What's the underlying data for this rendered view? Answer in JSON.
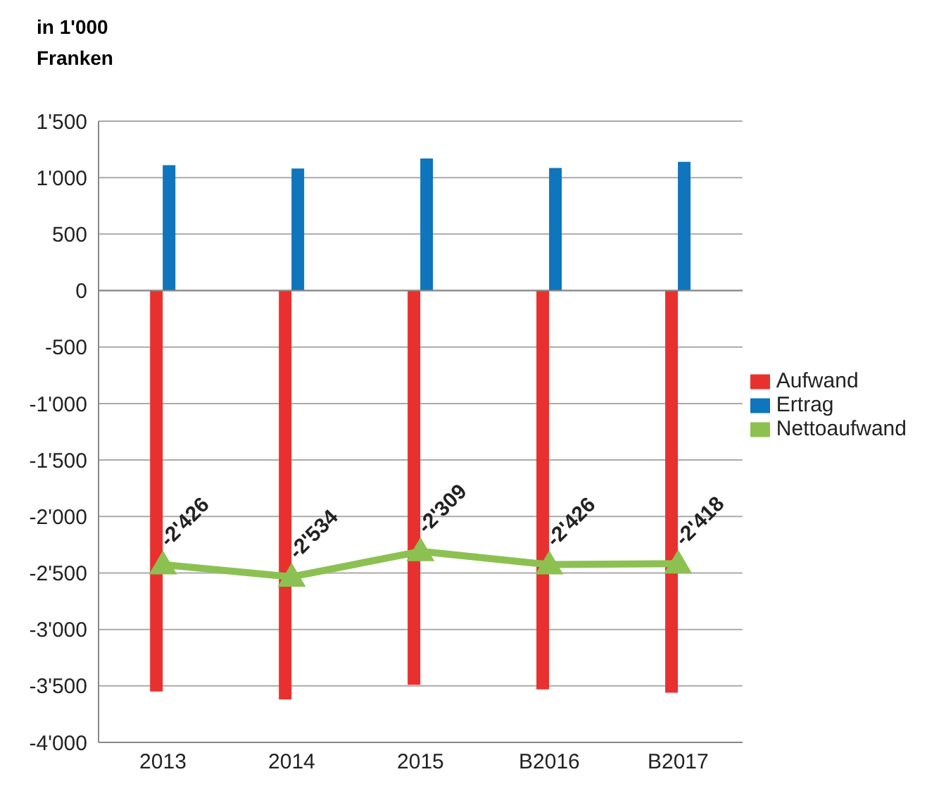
{
  "chart_data": {
    "type": "bar",
    "ylabel": "in 1'000 Franken",
    "categories": [
      "2013",
      "2014",
      "2015",
      "B2016",
      "B2017"
    ],
    "series": [
      {
        "name": "Aufwand",
        "color": "#e8312f",
        "values": [
          -3550,
          -3620,
          -3490,
          -3530,
          -3560
        ]
      },
      {
        "name": "Ertrag",
        "color": "#0f75bc",
        "values": [
          1110,
          1080,
          1170,
          1085,
          1140
        ]
      },
      {
        "name": "Nettoaufwand",
        "type": "line",
        "color": "#8cc152",
        "values": [
          -2426,
          -2534,
          -2309,
          -2426,
          -2418
        ],
        "value_labels": [
          "-2'426",
          "-2'534",
          "-2'309",
          "-2'426",
          "-2'418"
        ]
      }
    ],
    "ylim": [
      -4000,
      1500
    ],
    "yticks": [
      {
        "value": -4000,
        "label": "-4'000"
      },
      {
        "value": -3500,
        "label": "-3'500"
      },
      {
        "value": -3000,
        "label": "-3'000"
      },
      {
        "value": -2500,
        "label": "-2'500"
      },
      {
        "value": -2000,
        "label": "-2'000"
      },
      {
        "value": -1500,
        "label": "-1'500"
      },
      {
        "value": -1000,
        "label": "-1'000"
      },
      {
        "value": -500,
        "label": "-500"
      },
      {
        "value": 0,
        "label": "0"
      },
      {
        "value": 500,
        "label": "500"
      },
      {
        "value": 1000,
        "label": "1'000"
      },
      {
        "value": 1500,
        "label": "1'500"
      }
    ],
    "grid": "y",
    "legend": "right",
    "marker": "triangle"
  }
}
